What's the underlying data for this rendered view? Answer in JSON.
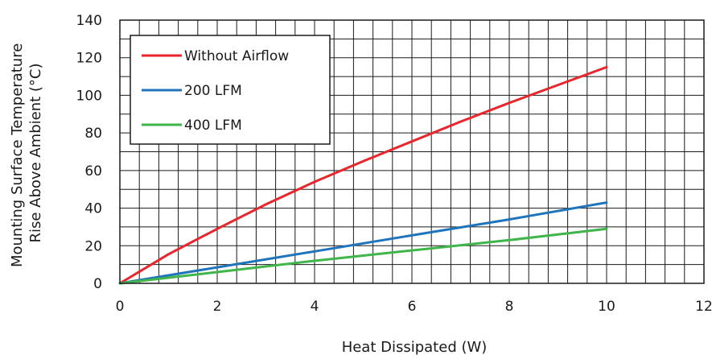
{
  "chart_data": {
    "type": "line",
    "xlabel": "Heat Dissipated (W)",
    "ylabel": [
      "Mounting Surface Temperature",
      "Rise Above  Ambient (°C)"
    ],
    "xlim": [
      0,
      12
    ],
    "ylim": [
      0,
      140
    ],
    "x_ticks": [
      0,
      2,
      4,
      6,
      8,
      10,
      12
    ],
    "y_ticks": [
      0,
      20,
      40,
      60,
      80,
      100,
      120,
      140
    ],
    "grid": true,
    "legend_position": "top-left",
    "series": [
      {
        "name": "Without Airflow",
        "color": "#e8262b",
        "x": [
          0,
          1,
          2,
          3,
          4,
          5,
          6,
          7,
          8,
          9,
          10
        ],
        "y": [
          0,
          15.5,
          29,
          42,
          54,
          65,
          75.5,
          86,
          96,
          105.5,
          115
        ]
      },
      {
        "name": "200 LFM",
        "color": "#1f74bb",
        "x": [
          0,
          2,
          4,
          6,
          8,
          10
        ],
        "y": [
          0,
          8.5,
          17,
          25.5,
          34,
          43
        ]
      },
      {
        "name": "400 LFM",
        "color": "#3fb54a",
        "x": [
          0,
          2,
          4,
          6,
          8,
          10
        ],
        "y": [
          0,
          6,
          12,
          17.5,
          23,
          29
        ]
      }
    ]
  }
}
